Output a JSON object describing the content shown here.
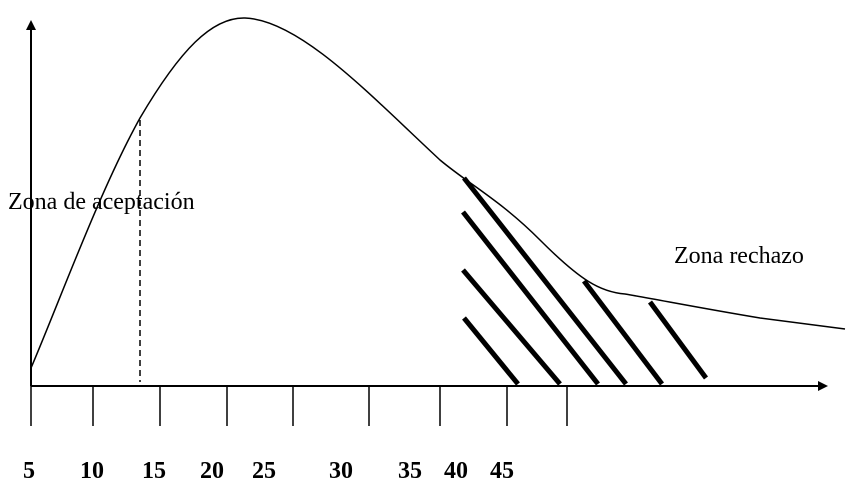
{
  "diagram": {
    "x_ticks": [
      "5",
      "10",
      "15",
      "20",
      "25",
      "30",
      "35",
      "40",
      "45"
    ],
    "acceptance_label": "Zona de aceptación",
    "rejection_label": "Zona rechazo"
  },
  "colors": {
    "ink": "#000000",
    "background": "#ffffff"
  }
}
